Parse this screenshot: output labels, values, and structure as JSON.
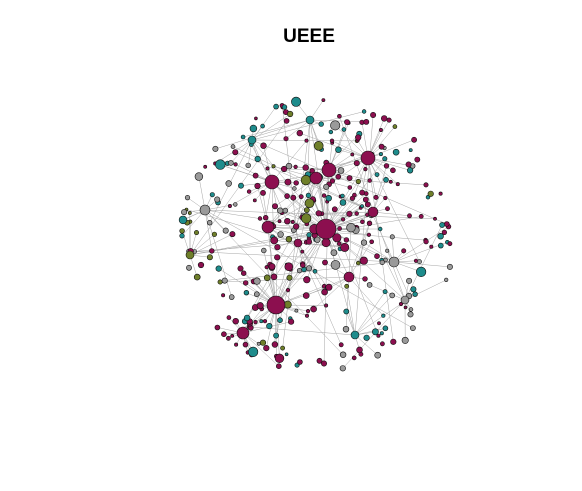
{
  "title": "UEEE",
  "node_colors": {
    "magenta": "#8c0f4f",
    "teal": "#1e8c8c",
    "grey": "#9a9a9a",
    "olive": "#6f7f2a"
  },
  "edge_color": "#a6a6a6",
  "node_stroke": "#111111"
}
